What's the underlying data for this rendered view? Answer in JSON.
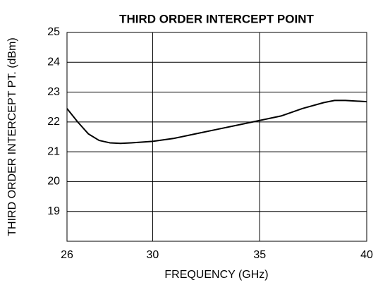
{
  "chart_data": {
    "type": "line",
    "title": "THIRD ORDER INTERCEPT POINT",
    "xlabel": "FREQUENCY (GHz)",
    "ylabel": "THIRD ORDER INTERCEPT PT. (dBm)",
    "x": [
      26,
      26.5,
      27,
      27.5,
      28,
      28.5,
      29,
      30,
      31,
      32,
      33,
      34,
      35,
      36,
      37,
      38,
      38.5,
      39,
      40
    ],
    "series": [
      {
        "color": "#000000",
        "values": [
          22.45,
          22.0,
          21.6,
          21.38,
          21.3,
          21.28,
          21.3,
          21.35,
          21.45,
          21.6,
          21.75,
          21.9,
          22.05,
          22.2,
          22.45,
          22.65,
          22.72,
          22.72,
          22.68
        ]
      }
    ],
    "xlim": [
      26,
      40
    ],
    "xticks": [
      26,
      30,
      35,
      40
    ],
    "ylim": [
      18,
      25
    ],
    "yticks": [
      19,
      20,
      21,
      22,
      23,
      24,
      25
    ],
    "grid": true
  }
}
